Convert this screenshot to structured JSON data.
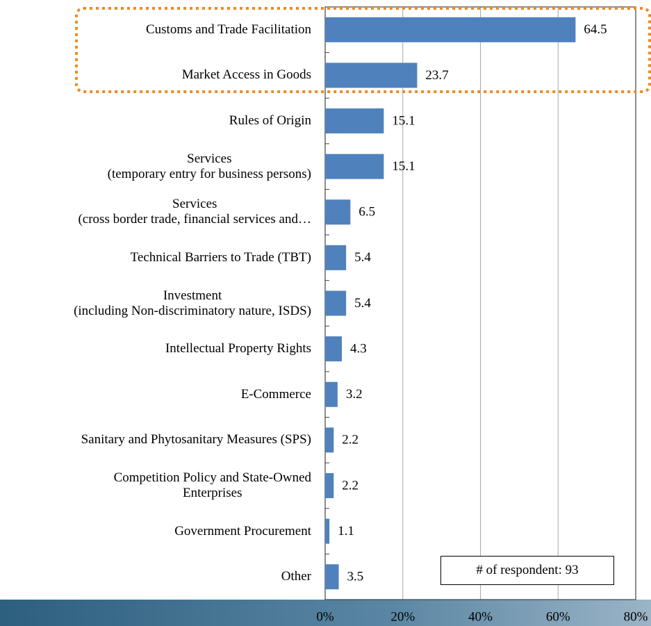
{
  "chart_data": {
    "type": "bar",
    "orientation": "horizontal",
    "categories": [
      "Customs and Trade Facilitation",
      "Market Access in Goods",
      "Rules of Origin",
      "Services\n(temporary entry for business persons)",
      "Services\n(cross border trade, financial services and…",
      "Technical Barriers to Trade (TBT)",
      "Investment\n(including Non-discriminatory nature, ISDS)",
      "Intellectual Property Rights",
      "E-Commerce",
      "Sanitary and Phytosanitary Measures (SPS)",
      "Competition Policy and State-Owned\nEnterprises",
      "Government Procurement",
      "Other"
    ],
    "values": [
      64.5,
      23.7,
      15.1,
      15.1,
      6.5,
      5.4,
      5.4,
      4.3,
      3.2,
      2.2,
      2.2,
      1.1,
      3.5
    ],
    "color": "#4f81bd",
    "xlim": [
      0,
      80
    ],
    "xticks": [
      {
        "value": 0,
        "label": "0%"
      },
      {
        "value": 20,
        "label": "20%"
      },
      {
        "value": 40,
        "label": "40%"
      },
      {
        "value": 60,
        "label": "60%"
      },
      {
        "value": 80,
        "label": "80%"
      }
    ],
    "grid": true,
    "annotation": "# of respondent: 93"
  }
}
